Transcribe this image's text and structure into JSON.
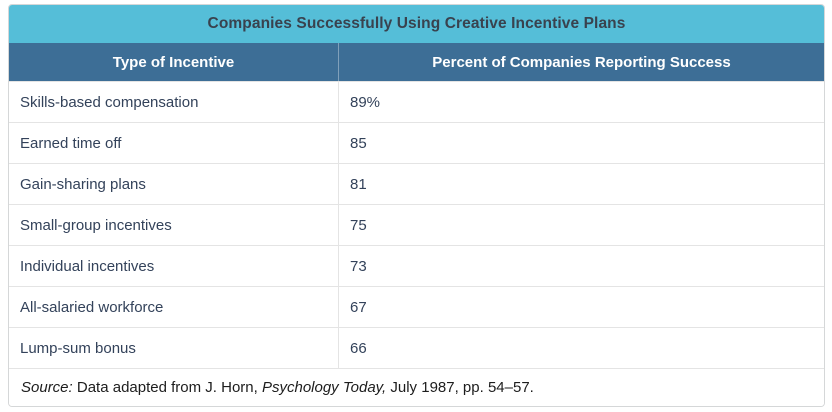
{
  "chart_data": {
    "type": "table",
    "title": "Companies Successfully Using Creative Incentive Plans",
    "columns": [
      "Type of Incentive",
      "Percent of Companies Reporting Success"
    ],
    "categories": [
      "Skills-based compensation",
      "Earned time off",
      "Gain-sharing plans",
      "Small-group incentives",
      "Individual incentives",
      "All-salaried workforce",
      "Lump-sum bonus"
    ],
    "values": [
      89,
      85,
      81,
      75,
      73,
      67,
      66
    ],
    "source_note": "Source: Data adapted from J. Horn, Psychology Today, July 1987, pp. 54–57."
  },
  "table": {
    "title": "Companies Successfully Using Creative Incentive Plans",
    "header": {
      "type_label": "Type of Incentive",
      "percent_label": "Percent of Companies Reporting Success"
    },
    "rows": [
      {
        "type": "Skills-based compensation",
        "percent": "89%"
      },
      {
        "type": "Earned time off",
        "percent": "85"
      },
      {
        "type": "Gain-sharing plans",
        "percent": "81"
      },
      {
        "type": "Small-group incentives",
        "percent": "75"
      },
      {
        "type": "Individual incentives",
        "percent": "73"
      },
      {
        "type": "All-salaried workforce",
        "percent": "67"
      },
      {
        "type": "Lump-sum bonus",
        "percent": "66"
      }
    ],
    "source": {
      "label": "Source:",
      "pre": " Data adapted from J. Horn, ",
      "journal": "Psychology Today,",
      "post": " July 1987, pp. 54–57."
    }
  },
  "colors": {
    "title_bg": "#55bed8",
    "header_bg": "#3d6e96",
    "header_text": "#ffffff",
    "title_text": "#39424e",
    "body_text": "#33425a",
    "row_border": "#e4e4e4",
    "outer_border": "#d5d7d8"
  }
}
